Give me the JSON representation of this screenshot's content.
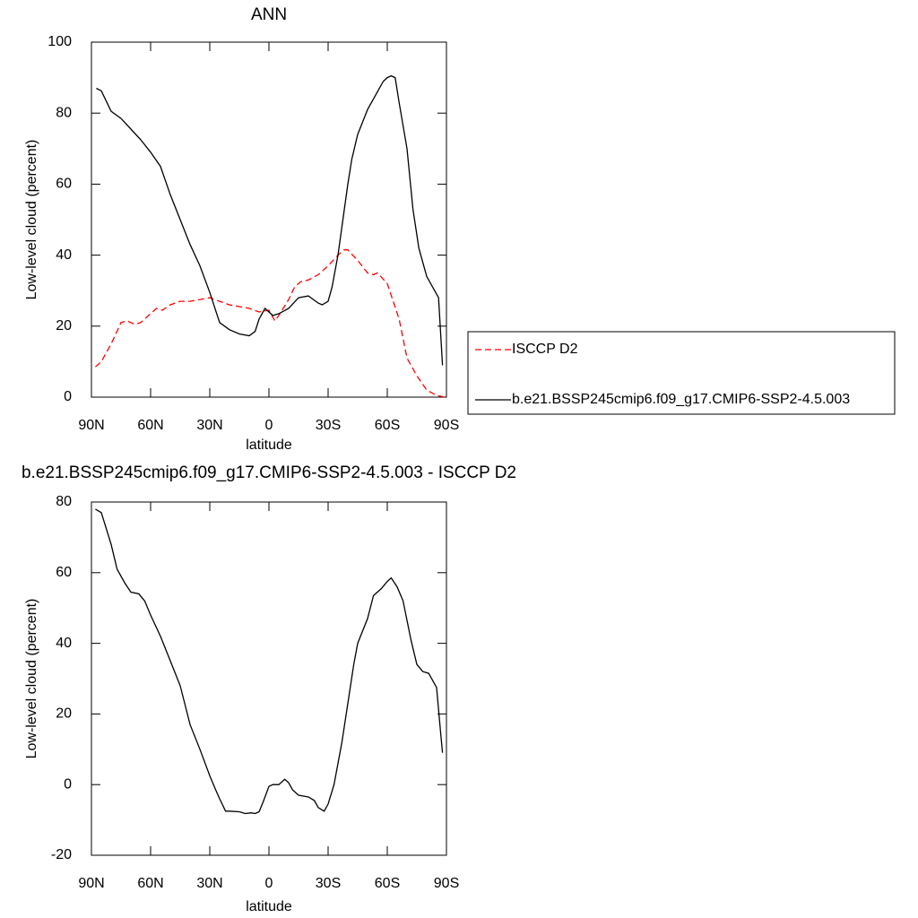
{
  "chart_data": [
    {
      "type": "line",
      "title": "ANN",
      "xlabel": "latitude",
      "ylabel": "Low-level cloud (percent)",
      "xlim": [
        90,
        -90
      ],
      "xticks": [
        {
          "value": 90,
          "label": "90N"
        },
        {
          "value": 60,
          "label": "60N"
        },
        {
          "value": 30,
          "label": "30N"
        },
        0,
        {
          "value": -30,
          "label": "30S"
        },
        {
          "value": -60,
          "label": "60S"
        },
        {
          "value": -90,
          "label": "90S"
        }
      ],
      "ylim": [
        0,
        100
      ],
      "yticks": [
        0,
        20,
        40,
        60,
        80,
        100
      ],
      "legend": "right",
      "series": [
        {
          "name": "ISCCP D2",
          "color": "#ff0000",
          "line_style": "dashed",
          "x": [
            88,
            85,
            80,
            75,
            72,
            68,
            65,
            60,
            57,
            54,
            50,
            45,
            40,
            35,
            30,
            25,
            20,
            15,
            10,
            5,
            0,
            -3,
            -5,
            -10,
            -13,
            -16,
            -20,
            -25,
            -30,
            -35,
            -38,
            -40,
            -45,
            -50,
            -53,
            -55,
            -60,
            -63,
            -66,
            -70,
            -75,
            -80,
            -85,
            -89
          ],
          "values": [
            8.5,
            10,
            15,
            21,
            21.5,
            20.5,
            21,
            23.5,
            25,
            24.5,
            26,
            27,
            27,
            27.5,
            28,
            27,
            26,
            25.5,
            25,
            24,
            24.5,
            21.5,
            23,
            27.5,
            31,
            32.5,
            33,
            34.5,
            37,
            40,
            41.5,
            41.5,
            38.5,
            35,
            34.5,
            35,
            32,
            27,
            22,
            11,
            6,
            2,
            0.5,
            0
          ]
        },
        {
          "name": "b.e21.BSSP245cmip6.f09_g17.CMIP6-SSP2-4.5.003",
          "color": "#000000",
          "line_style": "solid",
          "x": [
            87.5,
            85,
            80,
            75,
            70,
            65,
            60,
            55,
            50,
            45,
            40,
            35,
            30,
            25,
            20,
            15,
            10,
            7,
            5,
            2,
            0,
            -2,
            -5,
            -10,
            -15,
            -20,
            -25,
            -27,
            -30,
            -32,
            -35,
            -38,
            -40,
            -42,
            -45,
            -50,
            -55,
            -58,
            -60,
            -62,
            -64,
            -66,
            -70,
            -73,
            -76,
            -80,
            -84,
            -86,
            -88
          ],
          "values": [
            87,
            86.3,
            80.5,
            78.5,
            75.5,
            72.5,
            69,
            65,
            57,
            50,
            43,
            37,
            29.5,
            21,
            19,
            17.8,
            17.3,
            18.5,
            22,
            25,
            24,
            23,
            23.5,
            25,
            28,
            28.5,
            26.5,
            26,
            27,
            31,
            40,
            52,
            60,
            67,
            74,
            81,
            86,
            89,
            90,
            90.5,
            90,
            83,
            70,
            53,
            42,
            34,
            30,
            28,
            9
          ]
        }
      ]
    },
    {
      "type": "line",
      "title": "b.e21.BSSP245cmip6.f09_g17.CMIP6-SSP2-4.5.003 - ISCCP D2",
      "xlabel": "latitude",
      "ylabel": "Low-level cloud (percent)",
      "xlim": [
        90,
        -90
      ],
      "xticks": [
        {
          "value": 90,
          "label": "90N"
        },
        {
          "value": 60,
          "label": "60N"
        },
        {
          "value": 30,
          "label": "30N"
        },
        0,
        {
          "value": -30,
          "label": "30S"
        },
        {
          "value": -60,
          "label": "60S"
        },
        {
          "value": -90,
          "label": "90S"
        }
      ],
      "ylim": [
        -20,
        80
      ],
      "yticks": [
        -20,
        0,
        20,
        40,
        60,
        80
      ],
      "series": [
        {
          "color": "#000000",
          "line_style": "solid",
          "x": [
            88,
            85,
            80,
            77,
            73,
            70,
            66,
            63,
            60,
            55,
            50,
            45,
            40,
            35,
            30,
            27,
            25,
            22,
            20,
            15,
            12,
            9,
            7,
            5,
            3,
            0,
            -2,
            -5,
            -8,
            -10,
            -12,
            -15,
            -20,
            -23,
            -25,
            -28,
            -30,
            -33,
            -37,
            -40,
            -43,
            -45,
            -50,
            -53,
            -57,
            -60,
            -62,
            -65,
            -68,
            -72,
            -75,
            -78,
            -81,
            -85,
            -87,
            -88
          ],
          "values": [
            78,
            77,
            68,
            61,
            57,
            54.5,
            54,
            52,
            48,
            42,
            35,
            28,
            17,
            10,
            2.5,
            -1.5,
            -4,
            -7.5,
            -7.5,
            -7.7,
            -8.2,
            -8,
            -8.2,
            -7.7,
            -5,
            -0.5,
            0,
            0,
            1.5,
            0.5,
            -1.5,
            -3,
            -3.5,
            -4.5,
            -6.5,
            -7.5,
            -5.5,
            0,
            12,
            23,
            34,
            40,
            47,
            53.5,
            55.5,
            57.5,
            58.5,
            56,
            52,
            41,
            34,
            32,
            31.5,
            27.5,
            15,
            9
          ]
        }
      ]
    }
  ]
}
